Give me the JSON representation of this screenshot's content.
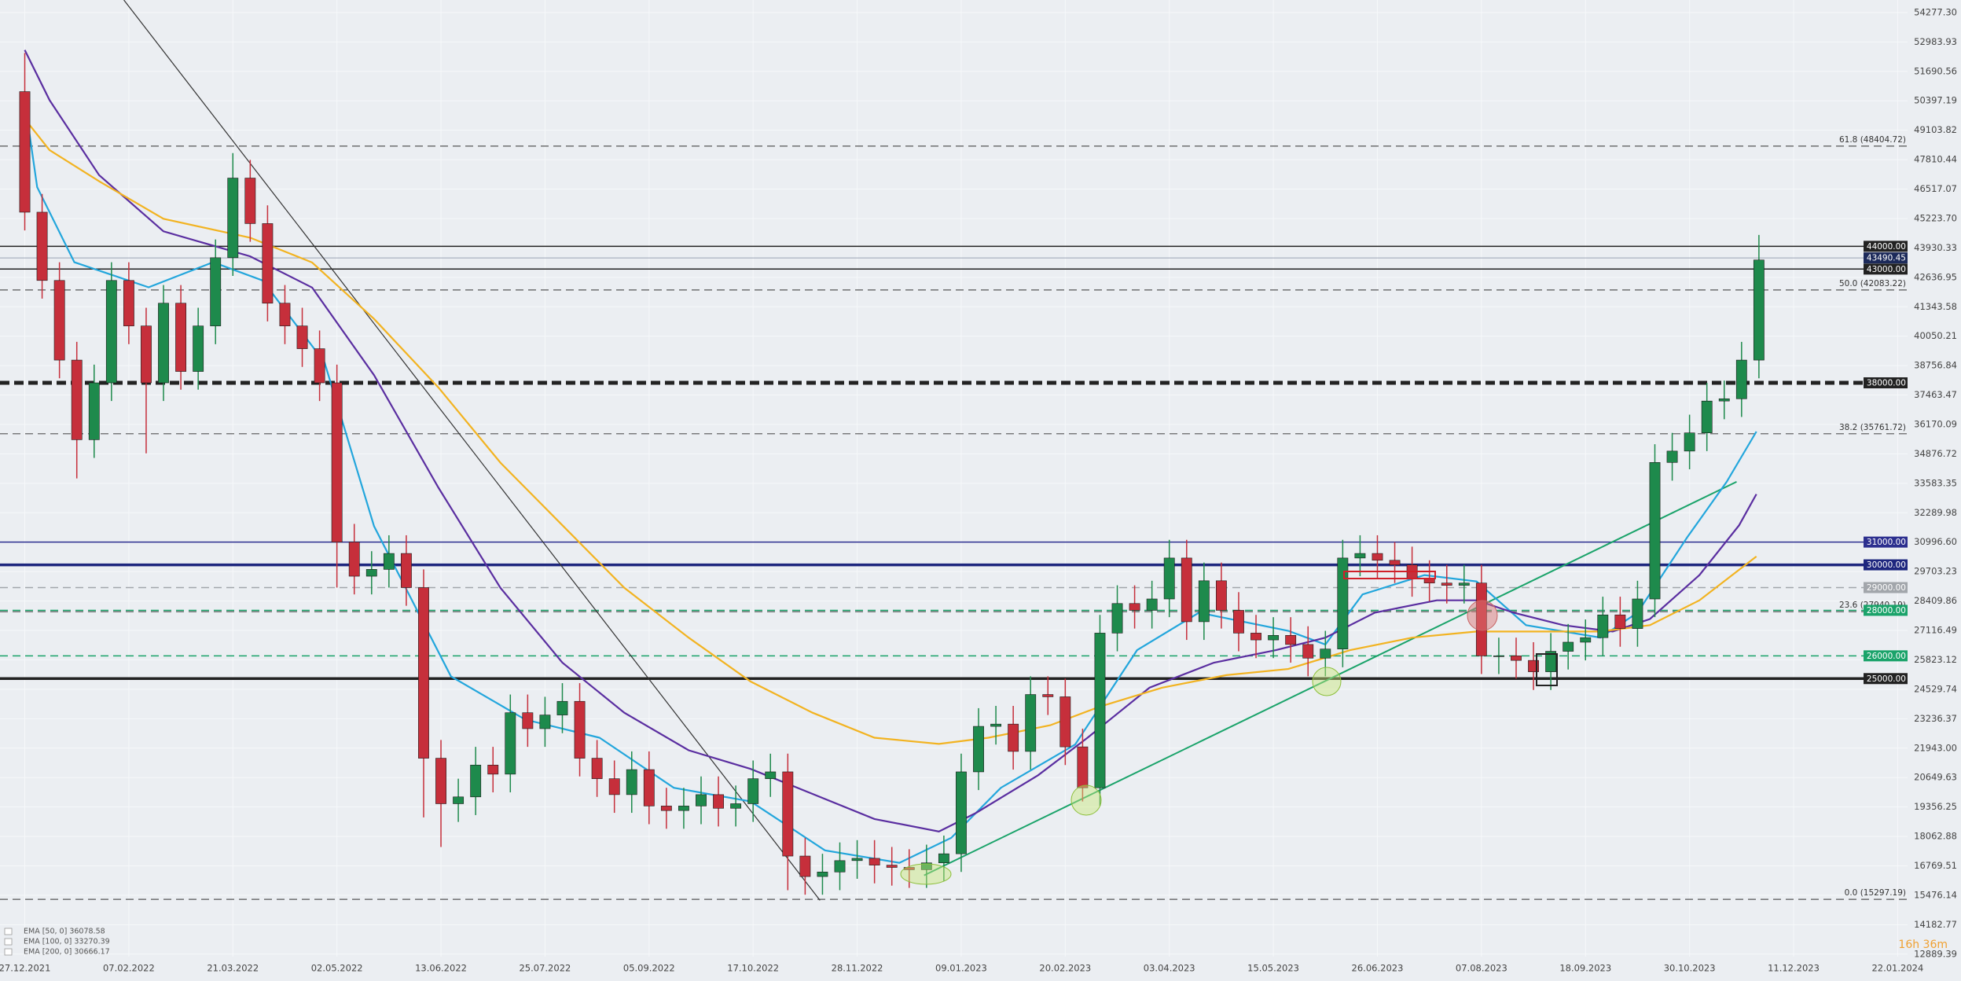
{
  "chart_data": {
    "type": "candlestick",
    "xlim": [
      -10,
      760
    ],
    "ylim": [
      12779,
      54827
    ],
    "grid": true,
    "background": "#ebeef2",
    "xticks": [
      {
        "value": 0,
        "label": "27.12.2021"
      },
      {
        "value": 42,
        "label": "07.02.2022"
      },
      {
        "value": 84,
        "label": "21.03.2022"
      },
      {
        "value": 126,
        "label": "02.05.2022"
      },
      {
        "value": 168,
        "label": "13.06.2022"
      },
      {
        "value": 210,
        "label": "25.07.2022"
      },
      {
        "value": 252,
        "label": "05.09.2022"
      },
      {
        "value": 294,
        "label": "17.10.2022"
      },
      {
        "value": 336,
        "label": "28.11.2022"
      },
      {
        "value": 378,
        "label": "09.01.2023"
      },
      {
        "value": 420,
        "label": "20.02.2023"
      },
      {
        "value": 462,
        "label": "03.04.2023"
      },
      {
        "value": 504,
        "label": "15.05.2023"
      },
      {
        "value": 546,
        "label": "26.06.2023"
      },
      {
        "value": 588,
        "label": "07.08.2023"
      },
      {
        "value": 630,
        "label": "18.09.2023"
      },
      {
        "value": 672,
        "label": "30.10.2023"
      },
      {
        "value": 714,
        "label": "11.12.2023"
      },
      {
        "value": 756,
        "label": "22.01.2024"
      }
    ],
    "yticks": [
      {
        "value": 54277.3,
        "label": "54277.30"
      },
      {
        "value": 52983.93,
        "label": "52983.93"
      },
      {
        "value": 51690.56,
        "label": "51690.56"
      },
      {
        "value": 50397.19,
        "label": "50397.19"
      },
      {
        "value": 49103.82,
        "label": "49103.82"
      },
      {
        "value": 47810.44,
        "label": "47810.44"
      },
      {
        "value": 46517.07,
        "label": "46517.07"
      },
      {
        "value": 45223.7,
        "label": "45223.70"
      },
      {
        "value": 43930.33,
        "label": "43930.33"
      },
      {
        "value": 42636.95,
        "label": "42636.95"
      },
      {
        "value": 41343.58,
        "label": "41343.58"
      },
      {
        "value": 40050.21,
        "label": "40050.21"
      },
      {
        "value": 38756.84,
        "label": "38756.84"
      },
      {
        "value": 37463.47,
        "label": "37463.47"
      },
      {
        "value": 36170.09,
        "label": "36170.09"
      },
      {
        "value": 34876.72,
        "label": "34876.72"
      },
      {
        "value": 33583.35,
        "label": "33583.35"
      },
      {
        "value": 32289.98,
        "label": "32289.98"
      },
      {
        "value": 30996.6,
        "label": "30996.60"
      },
      {
        "value": 29703.23,
        "label": "29703.23"
      },
      {
        "value": 28409.86,
        "label": "28409.86"
      },
      {
        "value": 27116.49,
        "label": "27116.49"
      },
      {
        "value": 25823.12,
        "label": "25823.12"
      },
      {
        "value": 24529.74,
        "label": "24529.74"
      },
      {
        "value": 23236.37,
        "label": "23236.37"
      },
      {
        "value": 21943,
        "label": "21943.00"
      },
      {
        "value": 20649.63,
        "label": "20649.63"
      },
      {
        "value": 19356.25,
        "label": "19356.25"
      },
      {
        "value": 18062.88,
        "label": "18062.88"
      },
      {
        "value": 16769.51,
        "label": "16769.51"
      },
      {
        "value": 15476.14,
        "label": "15476.14"
      },
      {
        "value": 14182.77,
        "label": "14182.77"
      },
      {
        "value": 12889.39,
        "label": "12889.39"
      }
    ],
    "candles": {
      "up_color": "#1e8a4c",
      "down_color": "#c62f3b",
      "x": [
        0,
        7,
        14,
        21,
        28,
        35,
        42,
        49,
        56,
        63,
        70,
        77,
        84,
        91,
        98,
        105,
        112,
        119,
        126,
        133,
        140,
        147,
        154,
        161,
        168,
        175,
        182,
        189,
        196,
        203,
        210,
        217,
        224,
        231,
        238,
        245,
        252,
        259,
        266,
        273,
        280,
        287,
        294,
        301,
        308,
        315,
        322,
        329,
        336,
        343,
        350,
        357,
        364,
        371,
        378,
        385,
        392,
        399,
        406,
        413,
        420,
        427,
        434,
        441,
        448,
        455,
        462,
        469,
        476,
        483,
        490,
        497,
        504,
        511,
        518,
        525,
        532,
        539,
        546,
        553,
        560,
        567,
        574,
        581,
        588,
        595,
        602,
        609,
        616,
        623,
        630,
        637,
        644,
        651,
        658,
        665,
        672,
        679,
        686,
        693,
        700
      ],
      "open": [
        50800,
        45500,
        42500,
        39000,
        35500,
        38000,
        42500,
        40500,
        38000,
        41500,
        38500,
        40500,
        43500,
        47000,
        45000,
        41500,
        40500,
        39500,
        38000,
        31000,
        29500,
        29800,
        30500,
        29000,
        21500,
        19500,
        19800,
        21200,
        20800,
        23500,
        22800,
        23400,
        24000,
        21500,
        20600,
        19900,
        21000,
        19400,
        19200,
        19400,
        19900,
        19300,
        19500,
        20600,
        20900,
        17200,
        16300,
        16500,
        17000,
        17100,
        16800,
        16700,
        16600,
        16900,
        17300,
        20900,
        22900,
        23000,
        21800,
        24300,
        24200,
        22000,
        20200,
        27000,
        28300,
        28000,
        28500,
        30300,
        27500,
        29300,
        28000,
        27000,
        26700,
        26900,
        26500,
        25900,
        26300,
        30300,
        30500,
        30200,
        30000,
        29400,
        29200,
        29100,
        29200,
        26000,
        26000,
        25800,
        25300,
        26200,
        26600,
        26800,
        27800,
        27200,
        28500,
        34500,
        35000,
        35800,
        37200,
        37300,
        39000
      ],
      "high": [
        52500,
        46300,
        43300,
        39800,
        38800,
        43300,
        43300,
        41300,
        42300,
        42300,
        41300,
        44300,
        48100,
        47800,
        45800,
        42300,
        41300,
        40300,
        38800,
        31800,
        30600,
        31300,
        31300,
        29800,
        22300,
        20600,
        22000,
        22000,
        24300,
        24300,
        24200,
        24800,
        24800,
        22300,
        21400,
        21800,
        21800,
        20200,
        20200,
        20700,
        20700,
        20300,
        21400,
        21700,
        21700,
        18000,
        17300,
        17800,
        17900,
        17900,
        17600,
        17500,
        17700,
        18100,
        21700,
        23700,
        23800,
        23800,
        25100,
        25100,
        25000,
        22800,
        27800,
        29100,
        29100,
        29300,
        31100,
        31100,
        30100,
        30100,
        28800,
        27800,
        27700,
        27700,
        27300,
        27100,
        31100,
        31300,
        31300,
        31000,
        30800,
        30200,
        30000,
        30000,
        30000,
        26800,
        26800,
        26600,
        27000,
        27400,
        27600,
        28600,
        28600,
        29300,
        35300,
        35800,
        36600,
        38000,
        38100,
        39800,
        44500
      ],
      "low": [
        44700,
        41700,
        38200,
        33800,
        34700,
        37200,
        39700,
        34900,
        37200,
        37700,
        37700,
        39700,
        42700,
        44200,
        40700,
        39700,
        38700,
        37200,
        29000,
        28700,
        28700,
        29000,
        28200,
        18900,
        17600,
        18700,
        19000,
        20000,
        20000,
        22000,
        22000,
        22600,
        20700,
        19800,
        19100,
        19100,
        18600,
        18400,
        18400,
        18600,
        18500,
        18500,
        18700,
        19800,
        15700,
        15500,
        15500,
        15700,
        16200,
        16000,
        15900,
        15800,
        15800,
        16100,
        16500,
        20100,
        22100,
        21000,
        21000,
        23400,
        21200,
        19600,
        19400,
        26200,
        27200,
        27200,
        27700,
        26700,
        26700,
        27200,
        26200,
        25900,
        25900,
        25700,
        25100,
        25100,
        25500,
        29500,
        29400,
        29200,
        28600,
        28400,
        28300,
        28300,
        25200,
        25200,
        25000,
        24500,
        24500,
        25400,
        25800,
        26000,
        26400,
        26400,
        27700,
        33700,
        34200,
        35000,
        36400,
        36500,
        38200
      ],
      "close": [
        45500,
        42500,
        39000,
        35500,
        38000,
        42500,
        40500,
        38000,
        41500,
        38500,
        40500,
        43500,
        47000,
        45000,
        41500,
        40500,
        39500,
        38000,
        31000,
        29500,
        29800,
        30500,
        29000,
        21500,
        19500,
        19800,
        21200,
        20800,
        23500,
        22800,
        23400,
        24000,
        21500,
        20600,
        19900,
        21000,
        19400,
        19200,
        19400,
        19900,
        19300,
        19500,
        20600,
        20900,
        17200,
        16300,
        16500,
        17000,
        17100,
        16800,
        16700,
        16600,
        16900,
        17300,
        20900,
        22900,
        23000,
        21800,
        24300,
        24200,
        22000,
        20200,
        27000,
        28300,
        28000,
        28500,
        30300,
        27500,
        29300,
        28000,
        27000,
        26700,
        26900,
        26500,
        25900,
        26300,
        30300,
        30500,
        30200,
        30000,
        29400,
        29200,
        29100,
        29200,
        26000,
        26000,
        25800,
        25300,
        26200,
        26600,
        26800,
        27800,
        27200,
        28500,
        34500,
        35000,
        35800,
        37200,
        37300,
        39000,
        43400
      ]
    },
    "series": [
      {
        "name": "EMA [50, 0] 36078.58",
        "color": "#23a6dc",
        "x": [
          0,
          5,
          20,
          50,
          76,
          96,
          121,
          141,
          172,
          202,
          232,
          262,
          293,
          323,
          353,
          374,
          394,
          424,
          449,
          474,
          510,
          525,
          540,
          565,
          586,
          606,
          636,
          651,
          671,
          687,
          699
        ],
        "values": [
          50400,
          46600,
          43300,
          42200,
          43300,
          42500,
          38900,
          31700,
          25100,
          23200,
          22400,
          20200,
          19600,
          17450,
          16900,
          18000,
          20200,
          22100,
          26250,
          27900,
          27100,
          26500,
          28700,
          29550,
          29270,
          27350,
          26800,
          27900,
          31200,
          33650,
          35860
        ]
      },
      {
        "name": "EMA [100, 0] 33270.39",
        "color": "#5a2ea0",
        "x": [
          0,
          10,
          30,
          56,
          91,
          116,
          141,
          167,
          192,
          217,
          242,
          268,
          293,
          318,
          343,
          369,
          384,
          409,
          429,
          454,
          480,
          505,
          525,
          545,
          570,
          586,
          601,
          621,
          641,
          656,
          676,
          692,
          699
        ],
        "values": [
          52630,
          50430,
          47130,
          44660,
          43560,
          42190,
          38340,
          33390,
          28990,
          25700,
          23500,
          21850,
          21030,
          19930,
          18830,
          18280,
          19100,
          20750,
          22400,
          24600,
          25700,
          26250,
          26800,
          27900,
          28440,
          28440,
          27900,
          27350,
          27070,
          27620,
          29550,
          31740,
          33110
        ]
      },
      {
        "name": "EMA [200, 0] 30666.17",
        "color": "#f2b321",
        "x": [
          0,
          10,
          30,
          56,
          91,
          116,
          141,
          167,
          192,
          217,
          242,
          268,
          293,
          318,
          343,
          369,
          389,
          414,
          434,
          459,
          485,
          510,
          535,
          560,
          586,
          611,
          636,
          656,
          676,
          699
        ],
        "values": [
          49600,
          48230,
          46860,
          45210,
          44380,
          43290,
          40810,
          37790,
          34490,
          31740,
          28990,
          26800,
          24870,
          23500,
          22400,
          22130,
          22400,
          22950,
          23770,
          24600,
          25150,
          25420,
          26250,
          26800,
          27070,
          27070,
          27070,
          27350,
          28440,
          30370
        ]
      }
    ],
    "trendlines": [
      {
        "color": "#333333",
        "x": [
          40,
          321
        ],
        "values": [
          54827,
          15254
        ]
      },
      {
        "color": "#1aa36a",
        "x": [
          363,
          691
        ],
        "values": [
          16350,
          33650
        ]
      }
    ],
    "levels": [
      {
        "value": 44000,
        "label": "44000.00",
        "color": "#222222",
        "style": "solid"
      },
      {
        "value": 43000,
        "label": "43000.00",
        "color": "#222222",
        "style": "solid"
      },
      {
        "value": 38000,
        "label": "38000.00",
        "color": "#222222",
        "style": "thick-dashed"
      },
      {
        "value": 31000,
        "label": "31000.00",
        "color": "#2c2f8f",
        "style": "solid"
      },
      {
        "value": 30000,
        "label": "30000.00",
        "color": "#1d267e",
        "style": "thick"
      },
      {
        "value": 29000,
        "label": "29000.00",
        "color": "#a2a6ab",
        "style": "dashed"
      },
      {
        "value": 28000,
        "label": "28000.00",
        "color": "#1aa36a",
        "style": "dashed"
      },
      {
        "value": 26000,
        "label": "26000.00",
        "color": "#1aa36a",
        "style": "dashed"
      },
      {
        "value": 25000,
        "label": "25000.00",
        "color": "#222222",
        "style": "thick"
      }
    ],
    "fib_levels": [
      {
        "value": 48404.72,
        "label": "61.8 (48404.72)"
      },
      {
        "value": 42083.22,
        "label": "50.0 (42083.22)"
      },
      {
        "value": 35761.72,
        "label": "38.2 (35761.72)"
      },
      {
        "value": 27940.19,
        "label": "23.6 (27940.19)"
      },
      {
        "value": 15297.19,
        "label": "0.0 (15297.19)"
      }
    ],
    "last_price": {
      "value": 43490.45,
      "label": "43490.45",
      "color": "#1c2a5a"
    },
    "timer": "16h 36m"
  }
}
